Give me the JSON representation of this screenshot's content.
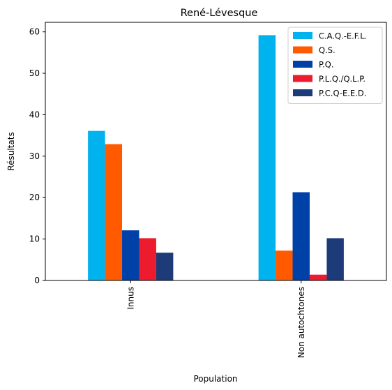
{
  "chart_data": {
    "type": "bar",
    "title": "René-Lévesque",
    "xlabel": "Population",
    "ylabel": "Résultats",
    "categories": [
      "Innus",
      "Non autochtones"
    ],
    "ylim": [
      0,
      62.3
    ],
    "yticks": [
      0,
      10,
      20,
      30,
      40,
      50,
      60
    ],
    "grid": false,
    "legend_position": "top-right",
    "series": [
      {
        "name": "C.A.Q.-E.F.L.",
        "color": "#00b2ee",
        "values": [
          36.1,
          59.2
        ]
      },
      {
        "name": "Q.S.",
        "color": "#ff5a00",
        "values": [
          32.9,
          7.2
        ]
      },
      {
        "name": "P.Q.",
        "color": "#0041a8",
        "values": [
          12.1,
          21.3
        ]
      },
      {
        "name": "P.L.Q./Q.L.P.",
        "color": "#ed1b2e",
        "values": [
          10.2,
          1.4
        ]
      },
      {
        "name": "P.C.Q-E.E.D.",
        "color": "#1c3b78",
        "values": [
          6.7,
          10.2
        ]
      }
    ]
  }
}
